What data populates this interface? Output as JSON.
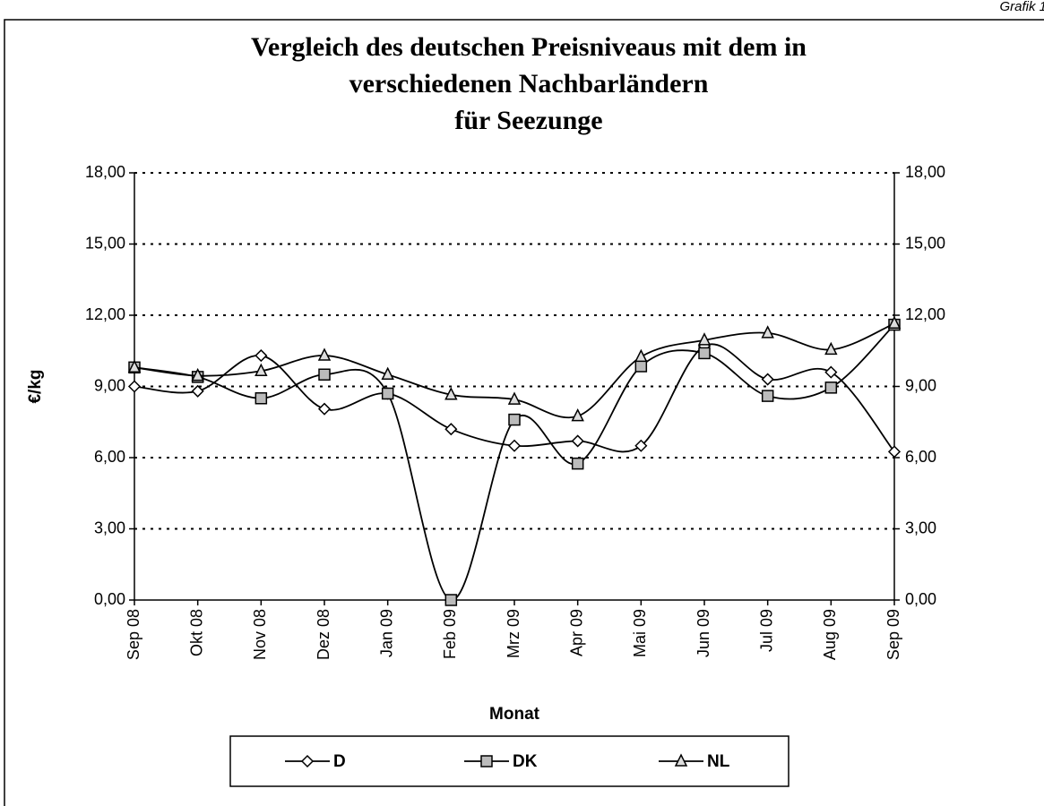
{
  "page_label": "Grafik 1",
  "chart_data": {
    "type": "line",
    "title": [
      "Vergleich des deutschen Preisniveaus mit dem in",
      "verschiedenen Nachbarländern",
      "für Seezunge"
    ],
    "x_label": "Monat",
    "y_label": "€/kg",
    "categories": [
      "Sep 08",
      "Okt 08",
      "Nov 08",
      "Dez 08",
      "Jan 09",
      "Feb 09",
      "Mrz 09",
      "Apr 09",
      "Mai 09",
      "Jun 09",
      "Jul 09",
      "Aug 09",
      "Sep 09"
    ],
    "series": [
      {
        "name": "D",
        "color": "#000000",
        "marker": "diamond",
        "values": [
          9.0,
          8.8,
          10.3,
          8.05,
          8.7,
          7.2,
          6.5,
          6.7,
          6.5,
          10.7,
          9.3,
          9.6,
          6.25
        ]
      },
      {
        "name": "DK",
        "color": "#000000",
        "marker": "square",
        "values": [
          9.8,
          9.4,
          8.5,
          9.5,
          8.7,
          0.0,
          7.6,
          5.75,
          9.85,
          10.4,
          8.6,
          8.95,
          11.6
        ]
      },
      {
        "name": "NL",
        "color": "#000000",
        "marker": "triangle",
        "values": [
          9.8,
          9.45,
          9.65,
          10.3,
          9.5,
          8.65,
          8.45,
          7.75,
          10.25,
          10.95,
          11.25,
          10.55,
          11.65
        ]
      }
    ],
    "ylim": [
      0,
      18
    ],
    "yticks": [
      {
        "value": 0,
        "label": "0,00"
      },
      {
        "value": 3,
        "label": "3,00"
      },
      {
        "value": 6,
        "label": "6,00"
      },
      {
        "value": 9,
        "label": "9,00"
      },
      {
        "value": 12,
        "label": "12,00"
      },
      {
        "value": 15,
        "label": "15,00"
      },
      {
        "value": 18,
        "label": "18,00"
      }
    ],
    "grid": true,
    "smooth": true,
    "legend": "bottom"
  }
}
